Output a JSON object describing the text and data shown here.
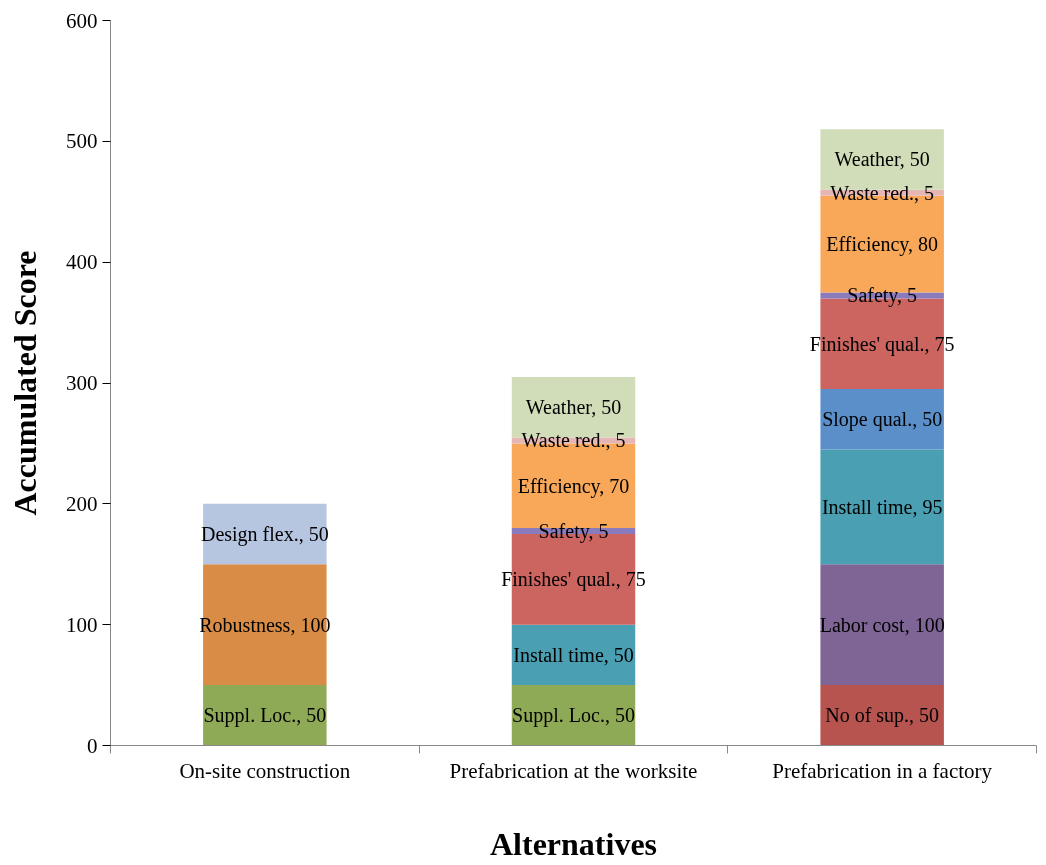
{
  "chart_data": {
    "type": "bar",
    "stacked": true,
    "xlabel": "Alternatives",
    "ylabel": "Accumulated Score",
    "categories": [
      "On-site construction",
      "Prefabrication at the worksite",
      "Prefabrication in a factory"
    ],
    "ylim": [
      0,
      600
    ],
    "yticks": [
      0,
      100,
      200,
      300,
      400,
      500,
      600
    ],
    "grid": false,
    "series": [
      {
        "color": "#b85450",
        "values": [
          null,
          null,
          50
        ],
        "value_labels": [
          null,
          null,
          "No of sup., 50"
        ]
      },
      {
        "color": "#8faa56",
        "values": [
          50,
          50,
          null
        ],
        "value_labels": [
          "Suppl. Loc., 50",
          "Suppl. Loc., 50",
          null
        ]
      },
      {
        "color": "#7e6596",
        "values": [
          null,
          null,
          100
        ],
        "value_labels": [
          null,
          null,
          "Labor cost, 100"
        ]
      },
      {
        "color": "#d98c46",
        "values": [
          100,
          null,
          null
        ],
        "value_labels": [
          "Robustness, 100",
          null,
          null
        ]
      },
      {
        "color": "#4a9fb2",
        "values": [
          null,
          50,
          95
        ],
        "value_labels": [
          null,
          "Install time, 50",
          "Install time, 95"
        ]
      },
      {
        "color": "#b6c5e0",
        "values": [
          50,
          null,
          null
        ],
        "value_labels": [
          "Design flex., 50",
          null,
          null
        ]
      },
      {
        "color": "#5b8fca",
        "values": [
          null,
          null,
          50
        ],
        "value_labels": [
          null,
          null,
          "Slope qual., 50"
        ]
      },
      {
        "color": "#cc6460",
        "values": [
          null,
          75,
          75
        ],
        "value_labels": [
          null,
          "Finishes' qual., 75",
          "Finishes' qual., 75"
        ]
      },
      {
        "color": "#8a7cbc",
        "values": [
          null,
          5,
          5
        ],
        "value_labels": [
          null,
          "Safety, 5",
          "Safety, 5"
        ]
      },
      {
        "color": "#f8a858",
        "values": [
          null,
          70,
          80
        ],
        "value_labels": [
          null,
          "Efficiency, 70",
          "Efficiency, 80"
        ]
      },
      {
        "color": "#e6b6b4",
        "values": [
          null,
          5,
          5
        ],
        "value_labels": [
          null,
          "Waste red., 5",
          "Waste red., 5"
        ]
      },
      {
        "color": "#d0ddb8",
        "values": [
          null,
          50,
          50
        ],
        "value_labels": [
          null,
          "Weather, 50",
          "Weather, 50"
        ]
      }
    ]
  }
}
